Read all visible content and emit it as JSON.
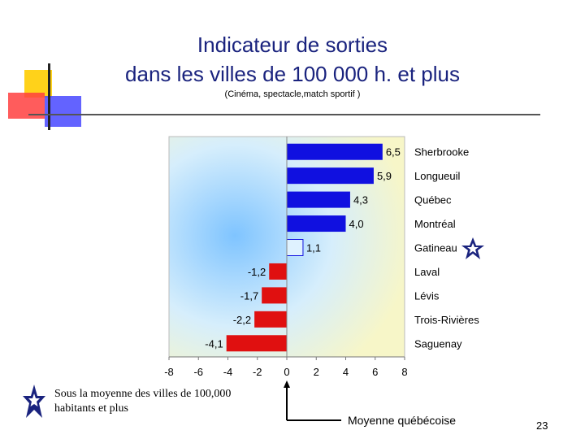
{
  "slide": {
    "title_line1": "Indicateur de sorties",
    "title_line2": "dans les villes de 100 000 h. et plus",
    "subtitle": "(Cinéma, spectacle,match sportif )",
    "note": "Sous la moyenne des villes de 100,000 habitants et plus",
    "axis_note": "Moyenne québécoise",
    "page_number": "23"
  },
  "colors": {
    "title": "#1a237e",
    "positive": "#1010e0",
    "negative": "#e01010",
    "highlight": "#dff2ff",
    "star": "#1a237e"
  },
  "chart_data": {
    "type": "bar",
    "orientation": "horizontal",
    "categories": [
      "Sherbrooke",
      "Longueuil",
      "Québec",
      "Montréal",
      "Gatineau",
      "Laval",
      "Lévis",
      "Trois-Rivières",
      "Saguenay"
    ],
    "values": [
      6.5,
      5.9,
      4.3,
      4.0,
      1.1,
      -1.2,
      -1.7,
      -2.2,
      -4.1
    ],
    "data_labels": [
      "6,5",
      "5,9",
      "4,3",
      "4,0",
      "1,1",
      "-1,2",
      "-1,7",
      "-2,2",
      "-4,1"
    ],
    "xlim": [
      -8,
      8
    ],
    "xticks": [
      "-8",
      "-6",
      "-4",
      "-2",
      "0",
      "2",
      "4",
      "6",
      "8"
    ],
    "grid": false,
    "highlighted_category": "Gatineau"
  }
}
